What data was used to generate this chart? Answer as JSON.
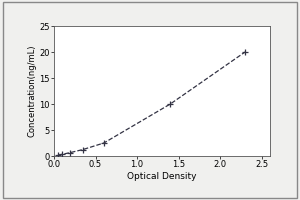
{
  "x_data": [
    0.047,
    0.094,
    0.188,
    0.35,
    0.6,
    1.4,
    2.3
  ],
  "y_data": [
    0.156,
    0.312,
    0.625,
    1.25,
    2.5,
    10.0,
    20.0
  ],
  "xlabel": "Optical Density",
  "ylabel": "Concentration(ng/mL)",
  "xlim": [
    0,
    2.6
  ],
  "ylim": [
    0,
    25
  ],
  "xticks": [
    0,
    0.5,
    1,
    1.5,
    2,
    2.5
  ],
  "yticks": [
    0,
    5,
    10,
    15,
    20,
    25
  ],
  "line_color": "#333344",
  "marker_color": "#333344",
  "marker": "+",
  "linestyle": "--",
  "background_color": "#f0f0ee",
  "plot_bg_color": "#ffffff",
  "border_color": "#aaaaaa",
  "xlabel_fontsize": 6.5,
  "ylabel_fontsize": 6.0,
  "tick_fontsize": 6,
  "linewidth": 0.9,
  "markersize": 4.5,
  "markeredgewidth": 0.9
}
